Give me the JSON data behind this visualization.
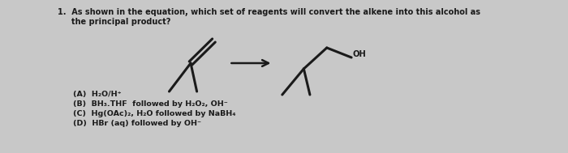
{
  "background_color": "#c8c8c8",
  "title_line1": "1.  As shown in the equation, which set of reagents will convert the alkene into this alcohol as",
  "title_line2": "     the principal product?",
  "answer_A": "(A)  H₂O/H⁺",
  "answer_B": "(B)  BH₃.THF  followed by H₂O₂, OH⁻",
  "answer_C": "(C)  Hg(OAc)₂, H₂O followed by NaBH₄",
  "answer_D": "(D)  HBr (aq) followed by OH⁻",
  "text_color": "#1a1a1a",
  "arrow_color": "#1a1a1a",
  "mol_lw": 2.2
}
